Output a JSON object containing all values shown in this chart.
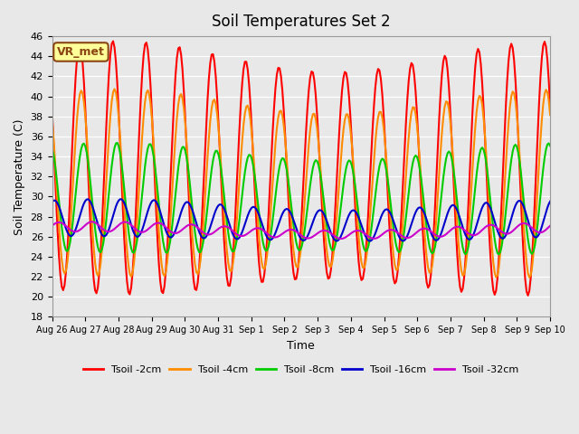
{
  "title": "Soil Temperatures Set 2",
  "xlabel": "Time",
  "ylabel": "Soil Temperature (C)",
  "ylim": [
    18,
    46
  ],
  "yticks": [
    18,
    20,
    22,
    24,
    26,
    28,
    30,
    32,
    34,
    36,
    38,
    40,
    42,
    44,
    46
  ],
  "annotation_text": "VR_met",
  "annotation_color": "#8B4513",
  "annotation_bg": "#FFFF99",
  "bg_color": "#E8E8E8",
  "plot_bg": "#E8E8E8",
  "series": [
    {
      "label": "Tsoil -2cm",
      "color": "#FF0000",
      "lw": 1.5,
      "amplitude": 11.5,
      "mean": 32.5,
      "phase": 0.0,
      "phase_peak": 0.58
    },
    {
      "label": "Tsoil -4cm",
      "color": "#FF8C00",
      "lw": 1.5,
      "amplitude": 8.5,
      "mean": 31.0,
      "phase": 0.0,
      "phase_peak": 0.63
    },
    {
      "label": "Tsoil -8cm",
      "color": "#00CC00",
      "lw": 1.5,
      "amplitude": 5.0,
      "mean": 29.5,
      "phase": 0.0,
      "phase_peak": 0.7
    },
    {
      "label": "Tsoil -16cm",
      "color": "#0000CC",
      "lw": 1.5,
      "amplitude": 1.7,
      "mean": 27.5,
      "phase": 0.0,
      "phase_peak": 0.82
    },
    {
      "label": "Tsoil -32cm",
      "color": "#CC00CC",
      "lw": 1.5,
      "amplitude": 0.45,
      "mean": 26.6,
      "phase": 0.0,
      "phase_peak": 0.95
    }
  ],
  "x_tick_labels": [
    "Aug 26",
    "Aug 27",
    "Aug 28",
    "Aug 29",
    "Aug 30",
    "Aug 31",
    "Sep 1",
    "Sep 2",
    "Sep 3",
    "Sep 4",
    "Sep 5",
    "Sep 6",
    "Sep 7",
    "Sep 8",
    "Sep 9",
    "Sep 10"
  ],
  "n_points": 360,
  "days": 15,
  "start_day": 0
}
